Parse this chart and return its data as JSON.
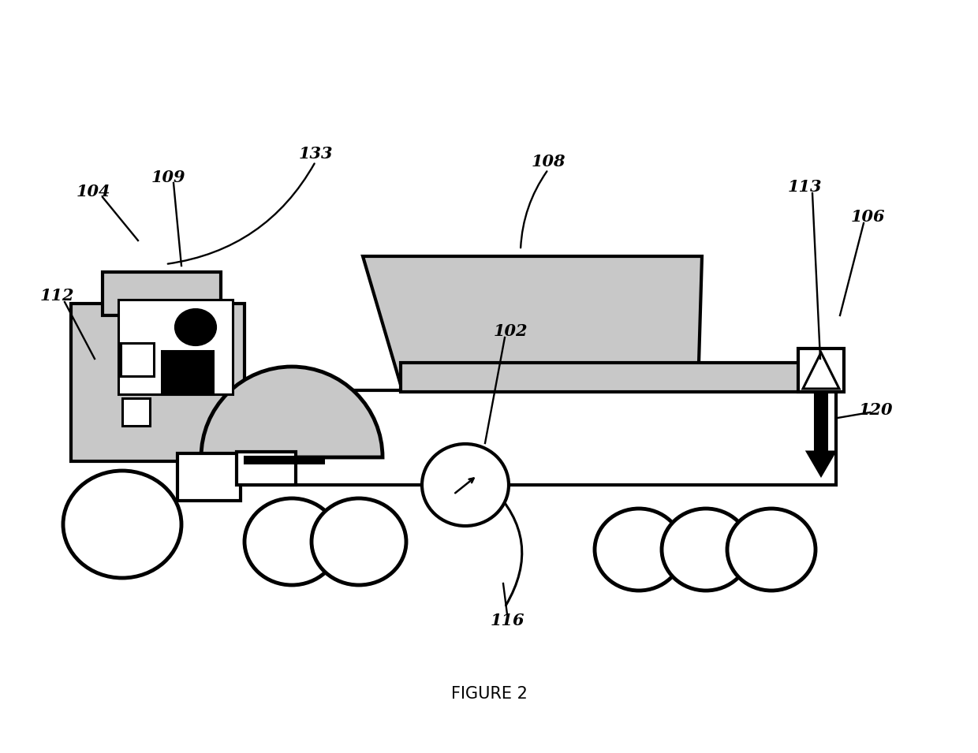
{
  "bg_color": "#ffffff",
  "lc": "#000000",
  "sc": "#c8c8c8",
  "lw": 2.2,
  "lwt": 3.0,
  "title": "FIGURE 2",
  "title_fs": 15
}
